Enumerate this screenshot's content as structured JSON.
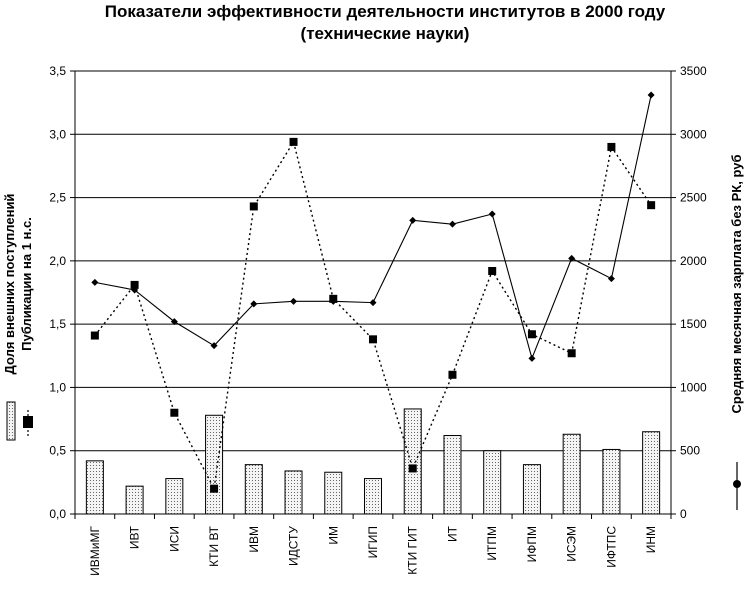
{
  "chart_data": {
    "type": "bar",
    "title": [
      "Показатели эффективности деятельности институтов в 2000 году",
      "(технические науки)"
    ],
    "categories": [
      "ИВМиМГ",
      "ИВТ",
      "ИСИ",
      "КТИ ВТ",
      "ИВМ",
      "ИДСТУ",
      "ИМ",
      "ИГИП",
      "КТИ ГИТ",
      "ИТ",
      "ИТПМ",
      "ИФПМ",
      "ИСЭМ",
      "ИФТПС",
      "ИНМ"
    ],
    "y_left": {
      "label_lines": [
        "Доля внешних поступлений",
        "Публикации на 1 н.с."
      ],
      "range": [
        0,
        3.5
      ],
      "ticks": [
        "0,0",
        "0,5",
        "1,0",
        "1,5",
        "2,0",
        "2,5",
        "3,0",
        "3,5"
      ]
    },
    "y_right": {
      "label": "Средняя месячная зарплата без РК, руб",
      "range": [
        0,
        3500
      ],
      "ticks": [
        "0",
        "500",
        "1000",
        "1500",
        "2000",
        "2500",
        "3000",
        "3500"
      ]
    },
    "grid": true,
    "series": [
      {
        "kind": "bar",
        "axis": "left",
        "values": [
          0.42,
          0.22,
          0.28,
          0.78,
          0.39,
          0.34,
          0.33,
          0.28,
          0.83,
          0.62,
          0.5,
          0.39,
          0.63,
          0.51,
          0.65
        ]
      },
      {
        "kind": "line-dotted-square",
        "axis": "left",
        "values": [
          1.41,
          1.81,
          0.8,
          0.2,
          2.43,
          2.94,
          1.7,
          1.38,
          0.36,
          1.1,
          1.92,
          1.42,
          1.27,
          2.9,
          2.44
        ]
      },
      {
        "kind": "line-solid-diamond",
        "axis": "right",
        "values": [
          1830,
          1770,
          1520,
          1330,
          1660,
          1680,
          1680,
          1670,
          2320,
          2290,
          2370,
          1230,
          2020,
          1860,
          3310
        ]
      }
    ],
    "legend": "left-and-right-edges"
  },
  "colors": {
    "background": "#ffffff",
    "ink": "#000000",
    "bar_fill": "#f2f2f2",
    "grid": "#000000"
  }
}
